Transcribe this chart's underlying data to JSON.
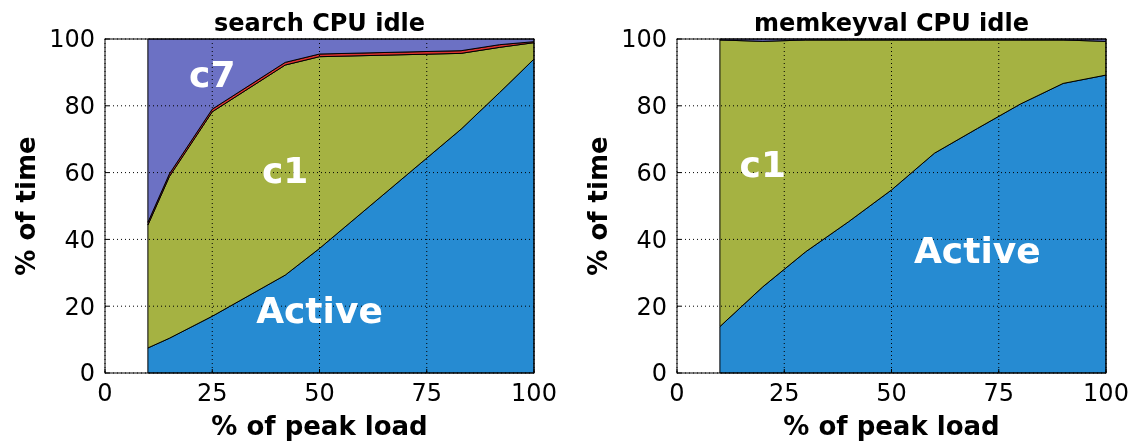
{
  "chart_data": [
    {
      "type": "area",
      "stacked": true,
      "title": "search CPU idle",
      "xlabel": "% of peak load",
      "ylabel": "% of time",
      "x": [
        10,
        15,
        25,
        42,
        50,
        83,
        92,
        100
      ],
      "xlim": [
        0,
        100
      ],
      "xticks": [
        0,
        25,
        50,
        75,
        100
      ],
      "ylim": [
        0,
        100
      ],
      "yticks": [
        0,
        20,
        40,
        60,
        80,
        100
      ],
      "grid": true,
      "series": [
        {
          "name": "Active",
          "color": "#268bd2",
          "values": [
            7.5,
            10.4,
            17,
            29.3,
            37.3,
            73,
            84,
            94
          ]
        },
        {
          "name": "c1",
          "color": "#a5b242",
          "values": [
            36.8,
            48.4,
            61.2,
            62.9,
            57.4,
            22.7,
            13.5,
            4.9
          ]
        },
        {
          "color": "#dc322f",
          "values": [
            0.8,
            0.8,
            0.8,
            0.8,
            0.8,
            0.8,
            0.8,
            0.3
          ]
        },
        {
          "name": "c7",
          "color": "#6c71c4",
          "values": [
            54.9,
            40.4,
            21,
            7,
            4.5,
            3.5,
            1.7,
            0.8
          ]
        }
      ]
    },
    {
      "type": "area",
      "stacked": true,
      "title": "memkeyval CPU idle",
      "xlabel": "% of peak load",
      "ylabel": "% of time",
      "x": [
        10,
        20,
        30,
        40,
        50,
        60,
        70,
        80,
        90,
        100
      ],
      "xlim": [
        0,
        100
      ],
      "xticks": [
        0,
        25,
        50,
        75,
        100
      ],
      "ylim": [
        0,
        100
      ],
      "yticks": [
        0,
        20,
        40,
        60,
        80,
        100
      ],
      "grid": true,
      "series": [
        {
          "name": "Active",
          "color": "#268bd2",
          "values": [
            13.9,
            25.8,
            36.3,
            45.3,
            54.8,
            65.8,
            73.2,
            80.5,
            86.7,
            89.2
          ]
        },
        {
          "name": "c1",
          "color": "#a5b242",
          "values": [
            85.8,
            73.5,
            63.4,
            54.4,
            44.9,
            33.9,
            26.5,
            19.2,
            13,
            10.1
          ]
        },
        {
          "color": "#6c71c4",
          "values": [
            0.3,
            0.7,
            0.3,
            0.3,
            0.3,
            0.3,
            0.3,
            0.3,
            0.3,
            0.7
          ]
        }
      ]
    }
  ]
}
